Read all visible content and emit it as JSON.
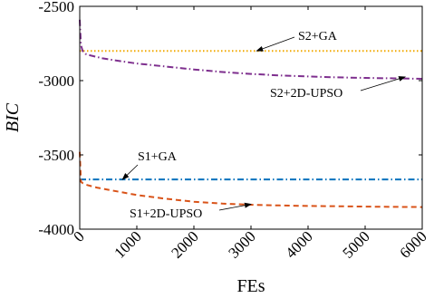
{
  "chart_data": {
    "type": "line",
    "title": "",
    "xlabel": "FEs",
    "ylabel": "BIC",
    "xlim": [
      0,
      6000
    ],
    "ylim": [
      -4000,
      -2500
    ],
    "xticks": [
      0,
      1000,
      2000,
      3000,
      4000,
      5000,
      6000
    ],
    "yticks": [
      -2500,
      -3000,
      -3500,
      -4000
    ],
    "grid": false,
    "series": [
      {
        "name": "S2+GA",
        "color": "#f2a900",
        "style": "dotted",
        "x": [
          0,
          6000
        ],
        "y": [
          -2800,
          -2800
        ]
      },
      {
        "name": "S2+2D-UPSO",
        "color": "#7e2f8e",
        "style": "dashdot",
        "x": [
          0,
          20,
          50,
          100,
          200,
          400,
          700,
          1000,
          1500,
          2000,
          2500,
          3000,
          3500,
          4000,
          4500,
          5000,
          5500,
          6000
        ],
        "y": [
          -2590,
          -2760,
          -2800,
          -2820,
          -2832,
          -2850,
          -2868,
          -2885,
          -2905,
          -2925,
          -2942,
          -2955,
          -2965,
          -2972,
          -2978,
          -2982,
          -2985,
          -2988
        ]
      },
      {
        "name": "S1+GA",
        "color": "#0072bd",
        "style": "dashdot",
        "x": [
          0,
          6000
        ],
        "y": [
          -3665,
          -3665
        ]
      },
      {
        "name": "S1+2D-UPSO",
        "color": "#d95319",
        "style": "dashed",
        "x": [
          0,
          20,
          50,
          100,
          300,
          600,
          1000,
          1500,
          2000,
          2500,
          3000,
          3500,
          4000,
          4500,
          5000,
          5500,
          6000
        ],
        "y": [
          -3480,
          -3680,
          -3690,
          -3700,
          -3720,
          -3742,
          -3770,
          -3795,
          -3815,
          -3828,
          -3836,
          -3840,
          -3844,
          -3846,
          -3848,
          -3850,
          -3851
        ]
      }
    ],
    "annotations": [
      {
        "text": "S2+GA",
        "target_x": 3100,
        "target_y": -2800
      },
      {
        "text": "S2+2D-UPSO",
        "target_x": 5700,
        "target_y": -2975
      },
      {
        "text": "S1+GA",
        "target_x": 750,
        "target_y": -3665
      },
      {
        "text": "S1+2D-UPSO",
        "target_x": 3000,
        "target_y": -3832
      }
    ]
  }
}
